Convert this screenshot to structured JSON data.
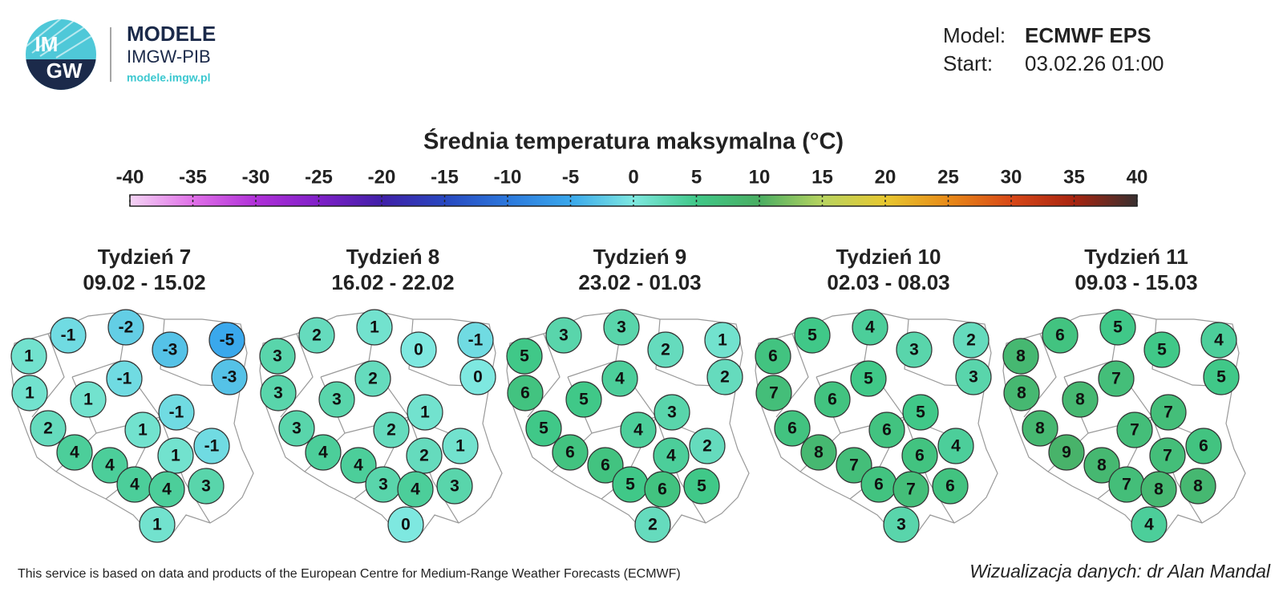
{
  "header": {
    "logo_text": [
      "IM",
      "GW"
    ],
    "brand": "MODELE",
    "org": "IMGW-PIB",
    "url": "modele.imgw.pl",
    "model_label": "Model:",
    "model": "ECMWF EPS",
    "start_label": "Start:",
    "start": "03.02.26 01:00"
  },
  "title": "Średnia temperatura maksymalna (°C)",
  "colorbar": {
    "ticks": [
      -40,
      -35,
      -30,
      -25,
      -20,
      -15,
      -10,
      -5,
      0,
      5,
      10,
      15,
      20,
      25,
      30,
      35,
      40
    ],
    "colors": [
      "#f4d4f4",
      "#e070e8",
      "#b030d8",
      "#8020c8",
      "#4020a8",
      "#2848c0",
      "#2c78dc",
      "#3aa8ec",
      "#7ee8e0",
      "#40c888",
      "#4aae62",
      "#b8d460",
      "#e8c830",
      "#e88a18",
      "#d84818",
      "#a82410",
      "#383030"
    ]
  },
  "maps": [
    {
      "week": "Tydzień 7",
      "dates": "09.02 - 15.02",
      "values": [
        -1,
        -2,
        -3,
        -5,
        1,
        -3,
        -1,
        1,
        1,
        -1,
        2,
        1,
        -1,
        4,
        1,
        4,
        4,
        3,
        4,
        1
      ]
    },
    {
      "week": "Tydzień 8",
      "dates": "16.02 - 22.02",
      "values": [
        2,
        1,
        0,
        -1,
        3,
        0,
        2,
        3,
        3,
        1,
        3,
        2,
        1,
        4,
        2,
        4,
        3,
        3,
        4,
        0
      ]
    },
    {
      "week": "Tydzień 9",
      "dates": "23.02 - 01.03",
      "values": [
        3,
        3,
        2,
        1,
        5,
        2,
        4,
        6,
        5,
        3,
        5,
        4,
        2,
        6,
        4,
        6,
        5,
        5,
        6,
        2
      ]
    },
    {
      "week": "Tydzień 10",
      "dates": "02.03 - 08.03",
      "values": [
        5,
        4,
        3,
        2,
        6,
        3,
        5,
        7,
        6,
        5,
        6,
        6,
        4,
        8,
        6,
        7,
        6,
        6,
        7,
        3
      ]
    },
    {
      "week": "Tydzień 11",
      "dates": "09.03 - 15.03",
      "values": [
        6,
        5,
        5,
        4,
        8,
        5,
        7,
        8,
        8,
        7,
        8,
        7,
        6,
        9,
        7,
        8,
        7,
        8,
        8,
        4
      ]
    }
  ],
  "footer": {
    "source": "This service is based on data and products of the European Centre for Medium-Range Weather Forecasts (ECMWF)",
    "credit": "Wizualizacja danych: dr Alan Mandal"
  }
}
